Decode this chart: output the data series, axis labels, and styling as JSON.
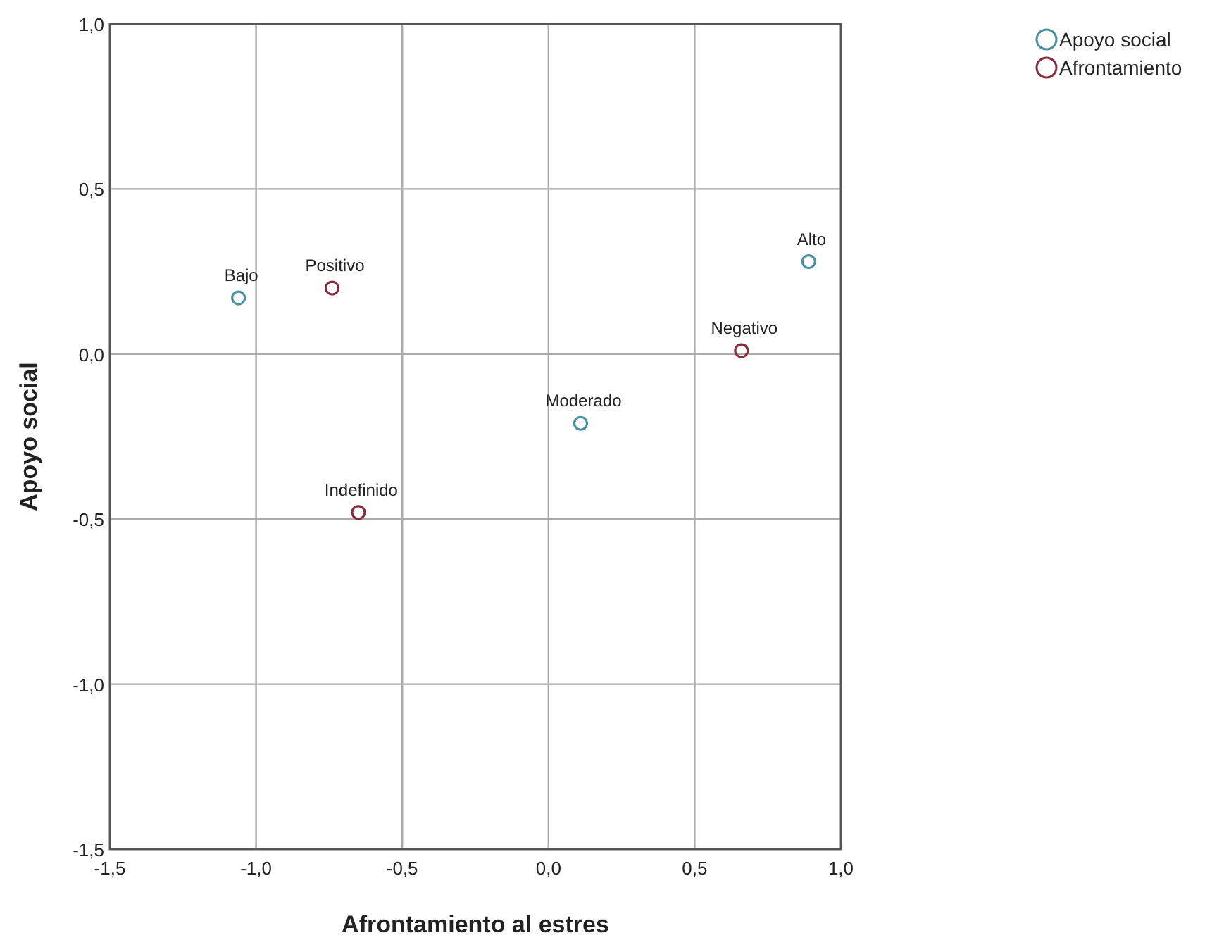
{
  "chart_data": {
    "type": "scatter",
    "xlabel": "Afrontamiento al estres",
    "ylabel": "Apoyo social",
    "series": [
      {
        "name": "Apoyo social",
        "color": "#4a8fa3",
        "x": [
          -1.06,
          0.11,
          0.89
        ],
        "values": [
          0.17,
          -0.21,
          0.28
        ]
      },
      {
        "name": "Afrontamiento",
        "color": "#8c2a3c",
        "x": [
          -0.74,
          -0.65,
          0.66
        ],
        "values": [
          0.2,
          -0.48,
          0.01
        ]
      }
    ],
    "annotations": [
      {
        "text": "Bajo",
        "x": -1.06,
        "y": 0.17
      },
      {
        "text": "Moderado",
        "x": 0.11,
        "y": -0.21
      },
      {
        "text": "Alto",
        "x": 0.89,
        "y": 0.28
      },
      {
        "text": "Positivo",
        "x": -0.74,
        "y": 0.2
      },
      {
        "text": "Indefinido",
        "x": -0.65,
        "y": -0.48
      },
      {
        "text": "Negativo",
        "x": 0.66,
        "y": 0.01
      }
    ],
    "xlim": [
      -1.5,
      1
    ],
    "ylim": [
      -1.5,
      1
    ],
    "xticks": [
      {
        "value": -1.5,
        "label": "-1,5"
      },
      {
        "value": -1,
        "label": "-1,0"
      },
      {
        "value": -0.5,
        "label": "-0,5"
      },
      {
        "value": 0,
        "label": "0,0"
      },
      {
        "value": 0.5,
        "label": "0,5"
      },
      {
        "value": 1,
        "label": "1,0"
      }
    ],
    "yticks": [
      {
        "value": -1.5,
        "label": "-1,5"
      },
      {
        "value": -1,
        "label": "-1,0"
      },
      {
        "value": -0.5,
        "label": "-0,5"
      },
      {
        "value": 0,
        "label": "0,0"
      },
      {
        "value": 0.5,
        "label": "0,5"
      },
      {
        "value": 1,
        "label": "1,0"
      }
    ],
    "grid": true,
    "legend": "top right",
    "marker": "circle"
  }
}
